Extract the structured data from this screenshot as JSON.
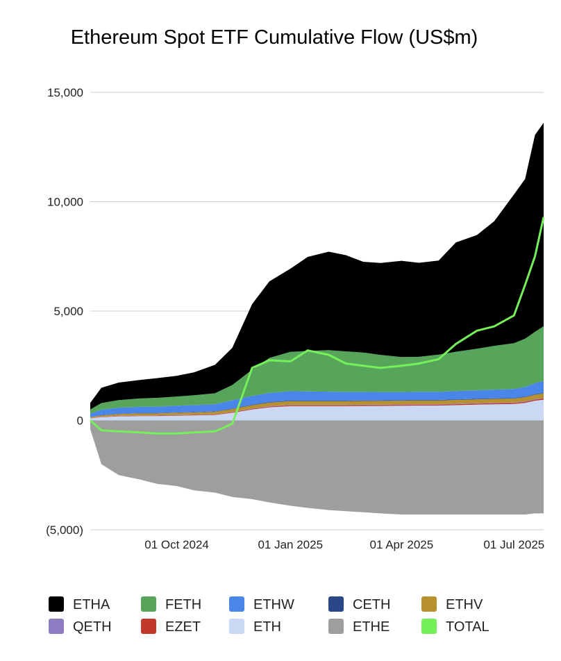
{
  "chart_data": {
    "type": "area",
    "title": "Ethereum Spot ETF Cumulative Flow (US$m)",
    "stacked": true,
    "ylim": [
      -5000,
      15000
    ],
    "yticks": [
      {
        "value": 15000,
        "label": "15,000"
      },
      {
        "value": 10000,
        "label": "10,000"
      },
      {
        "value": 5000,
        "label": "5,000"
      },
      {
        "value": 0,
        "label": "0"
      },
      {
        "value": -5000,
        "label": "(5,000)"
      }
    ],
    "xlim": [
      "2024-07-23",
      "2025-07-25"
    ],
    "xticks": [
      {
        "date": "2024-10-01",
        "label": "01 Oct 2024"
      },
      {
        "date": "2025-01-01",
        "label": "01 Jan 2025"
      },
      {
        "date": "2025-04-01",
        "label": "01 Apr 2025"
      },
      {
        "date": "2025-07-01",
        "label": "01 Jul 2025"
      }
    ],
    "grid": true,
    "legend_position": "bottom",
    "x": [
      "2024-07-23",
      "2024-08-01",
      "2024-08-15",
      "2024-09-01",
      "2024-09-15",
      "2024-10-01",
      "2024-10-15",
      "2024-11-01",
      "2024-11-15",
      "2024-12-01",
      "2024-12-15",
      "2025-01-01",
      "2025-01-15",
      "2025-02-01",
      "2025-02-15",
      "2025-03-01",
      "2025-03-15",
      "2025-04-01",
      "2025-04-15",
      "2025-05-01",
      "2025-05-15",
      "2025-06-01",
      "2025-06-15",
      "2025-07-01",
      "2025-07-10",
      "2025-07-18",
      "2025-07-25"
    ],
    "series": [
      {
        "name": "ETHE",
        "color": "#9e9e9e",
        "values": [
          -400,
          -2000,
          -2500,
          -2700,
          -2900,
          -3000,
          -3200,
          -3300,
          -3500,
          -3600,
          -3750,
          -3900,
          -4000,
          -4100,
          -4150,
          -4200,
          -4250,
          -4300,
          -4300,
          -4300,
          -4300,
          -4300,
          -4300,
          -4300,
          -4300,
          -4250,
          -4250
        ]
      },
      {
        "name": "ETH",
        "color": "#cbd8f3",
        "values": [
          100,
          150,
          180,
          200,
          200,
          220,
          230,
          250,
          350,
          500,
          600,
          650,
          650,
          650,
          650,
          660,
          660,
          670,
          680,
          680,
          700,
          720,
          740,
          750,
          800,
          900,
          950
        ]
      },
      {
        "name": "EZET",
        "color": "#c0392b",
        "values": [
          10,
          15,
          18,
          20,
          20,
          22,
          24,
          25,
          28,
          30,
          35,
          40,
          40,
          40,
          40,
          40,
          42,
          42,
          42,
          42,
          44,
          45,
          46,
          47,
          48,
          50,
          55
        ]
      },
      {
        "name": "QETH",
        "color": "#8e7cc3",
        "values": [
          5,
          8,
          10,
          10,
          10,
          12,
          12,
          12,
          14,
          15,
          18,
          20,
          20,
          20,
          20,
          20,
          20,
          20,
          20,
          20,
          22,
          22,
          22,
          22,
          24,
          25,
          25
        ]
      },
      {
        "name": "ETHV",
        "color": "#b8912f",
        "values": [
          30,
          60,
          80,
          90,
          90,
          95,
          100,
          110,
          130,
          150,
          160,
          170,
          170,
          170,
          170,
          170,
          170,
          170,
          170,
          170,
          170,
          175,
          175,
          180,
          190,
          200,
          200
        ]
      },
      {
        "name": "CETH",
        "color": "#2a4687",
        "values": [
          5,
          10,
          12,
          12,
          12,
          13,
          14,
          15,
          18,
          22,
          25,
          25,
          25,
          25,
          25,
          25,
          25,
          25,
          25,
          25,
          25,
          25,
          25,
          25,
          25,
          25,
          25
        ]
      },
      {
        "name": "ETHW",
        "color": "#4a86e8",
        "values": [
          150,
          250,
          280,
          290,
          300,
          310,
          320,
          330,
          380,
          400,
          420,
          430,
          420,
          410,
          400,
          390,
          380,
          370,
          370,
          370,
          380,
          390,
          400,
          410,
          450,
          500,
          550
        ]
      },
      {
        "name": "FETH",
        "color": "#57a55a",
        "values": [
          200,
          300,
          350,
          380,
          400,
          420,
          450,
          500,
          700,
          1200,
          1600,
          1800,
          1850,
          1900,
          1850,
          1800,
          1700,
          1600,
          1600,
          1700,
          1800,
          1900,
          2000,
          2100,
          2200,
          2350,
          2500
        ]
      },
      {
        "name": "ETHA",
        "color": "#000000",
        "values": [
          300,
          700,
          800,
          850,
          900,
          950,
          1050,
          1300,
          1700,
          3000,
          3500,
          3800,
          4300,
          4500,
          4400,
          4150,
          4200,
          4400,
          4300,
          4300,
          5000,
          5200,
          5700,
          6800,
          7300,
          9000,
          9300
        ]
      },
      {
        "name": "TOTAL",
        "color": "#76f05a",
        "values": [
          0,
          -450,
          -500,
          -550,
          -600,
          -600,
          -550,
          -500,
          -150,
          2400,
          2750,
          2700,
          3200,
          3000,
          2600,
          2500,
          2400,
          2500,
          2600,
          2800,
          3500,
          4100,
          4300,
          4800,
          6200,
          7500,
          9300
        ]
      }
    ],
    "legend": [
      {
        "name": "ETHA",
        "color": "#000000"
      },
      {
        "name": "FETH",
        "color": "#57a55a"
      },
      {
        "name": "ETHW",
        "color": "#4a86e8"
      },
      {
        "name": "CETH",
        "color": "#2a4687"
      },
      {
        "name": "ETHV",
        "color": "#b8912f"
      },
      {
        "name": "QETH",
        "color": "#8e7cc3"
      },
      {
        "name": "EZET",
        "color": "#c0392b"
      },
      {
        "name": "ETH",
        "color": "#cbd8f3"
      },
      {
        "name": "ETHE",
        "color": "#9e9e9e"
      },
      {
        "name": "TOTAL",
        "color": "#76f05a"
      }
    ]
  }
}
